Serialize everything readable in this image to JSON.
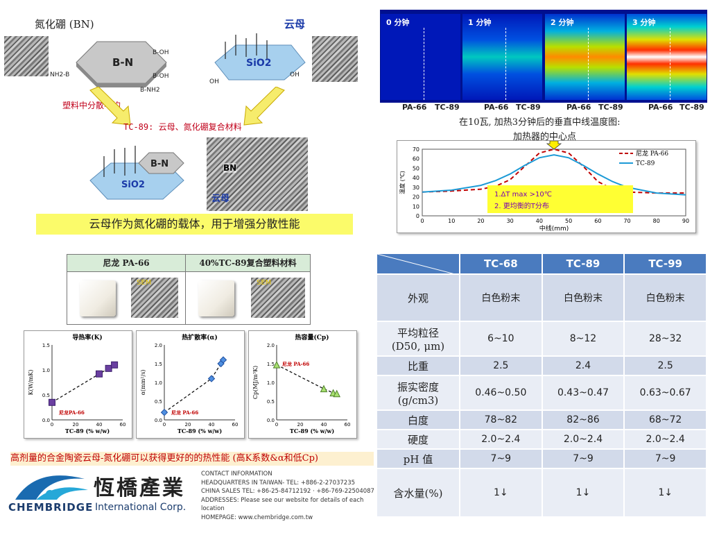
{
  "top_left": {
    "bn_title": "氮化硼 (BN)",
    "mica_title": "云母",
    "bn_label": "B-N",
    "sio2_label": "SiO2",
    "uneven_text": "塑料中分散不均",
    "tc89_caption": "TC-89: 云母、氮化硼复合材料",
    "composite_bn": "B-N",
    "composite_sio2": "SiO2",
    "sem_bn": "BN",
    "sem_mica": "云母",
    "carrier_text": "云母作为氮化硼的载体，用于增强分散性能"
  },
  "heatmap": {
    "panels": [
      "0 分钟",
      "1 分钟",
      "2 分钟",
      "3 分钟"
    ],
    "left_label": "PA-66",
    "right_label": "TC-89",
    "caption": "在10瓦, 加热3分钟后的垂直中线温度图:",
    "center_note": "加热器的中心点"
  },
  "line_chart": {
    "ylabel": "温度 (℃)",
    "xlabel": "中线(mm)",
    "legend": [
      "尼龙 PA-66",
      "TC-89"
    ],
    "note1": "1.ΔT max  >10℃",
    "note2": "2. 更均衡的T分布",
    "chart_data": {
      "type": "line",
      "xlim": [
        0,
        90
      ],
      "ylim": [
        0,
        70
      ],
      "xticks": [
        "0",
        "10",
        "20",
        "30",
        "40",
        "50",
        "60",
        "70",
        "80",
        "90"
      ],
      "yticks": [
        "0",
        "10",
        "20",
        "30",
        "40",
        "50",
        "60",
        "70"
      ],
      "series": [
        {
          "name": "尼龙 PA-66",
          "x": [
            0,
            10,
            20,
            25,
            30,
            35,
            40,
            45,
            50,
            55,
            60,
            65,
            70,
            80,
            90
          ],
          "y": [
            25,
            26,
            28,
            31,
            38,
            52,
            66,
            70,
            66,
            52,
            36,
            28,
            25,
            24,
            24
          ]
        },
        {
          "name": "TC-89",
          "x": [
            0,
            10,
            20,
            25,
            30,
            35,
            40,
            45,
            50,
            55,
            60,
            65,
            70,
            80,
            90
          ],
          "y": [
            25,
            27,
            32,
            37,
            44,
            53,
            61,
            64,
            61,
            53,
            44,
            36,
            30,
            24,
            22
          ]
        }
      ]
    }
  },
  "pa_table": {
    "col1": "尼龙 PA-66",
    "col2": "40%TC-89复合塑料材料",
    "sem": "SEM"
  },
  "small_charts": [
    {
      "title": "导热率(K)",
      "ylabel": "K(W/mK)",
      "xlabel": "TC-89 (% w/w)",
      "annot": "尼龙PA-66",
      "yticks": [
        "0.0",
        "0.5",
        "1.0",
        "1.5"
      ],
      "xticks": [
        "0",
        "20",
        "40",
        "60"
      ],
      "chart_data": {
        "type": "scatter",
        "x": [
          0,
          40,
          48,
          53
        ],
        "y": [
          0.35,
          0.92,
          1.03,
          1.1
        ],
        "xlim": [
          0,
          60
        ],
        "ylim": [
          0,
          1.5
        ]
      }
    },
    {
      "title": "热扩散率(α)",
      "ylabel": "α(mm²/s)",
      "xlabel": "TC-89 (% w/w)",
      "annot": "尼龙 PA-66",
      "yticks": [
        "0.0",
        "0.5",
        "1.0",
        "1.5",
        "2.0"
      ],
      "xticks": [
        "0",
        "20",
        "40",
        "60"
      ],
      "chart_data": {
        "type": "scatter",
        "x": [
          0,
          40,
          48,
          50
        ],
        "y": [
          0.2,
          1.1,
          1.5,
          1.6
        ],
        "xlim": [
          0,
          60
        ],
        "ylim": [
          0,
          2.0
        ]
      }
    },
    {
      "title": "热容量(Cp)",
      "ylabel": "Cp(MJ/m³K)",
      "xlabel": "TC-89 (% w/w)",
      "annot": "尼龙 PA-66",
      "yticks": [
        "0.0",
        "0.5",
        "1.0",
        "1.5",
        "2.0"
      ],
      "xticks": [
        "0",
        "20",
        "40",
        "60"
      ],
      "chart_data": {
        "type": "scatter",
        "x": [
          0,
          40,
          48,
          51
        ],
        "y": [
          1.47,
          0.83,
          0.72,
          0.7
        ],
        "xlim": [
          0,
          60
        ],
        "ylim": [
          0,
          2.0
        ]
      }
    }
  ],
  "bottom_red": "高剂量的合金陶瓷云母-氮化硼可以获得更好的的热性能 (高K系数&α和低Cp)",
  "logo": {
    "brand": "CHEMBRIDGE",
    "sub": "International Corp.",
    "chinese": "恆橋產業"
  },
  "contact": [
    "CONTACT INFORMATION",
    "HEADQUARTERS IN TAIWAN- TEL: +886-2-27037235",
    "CHINA SALES TEL: +86-25-84712192 · +86-769-22504087",
    "ADDRESSES: Please see our website for details of each location",
    "HOMEPAGE: www.chembridge.com.tw"
  ],
  "props_table": {
    "headers": [
      "TC-68",
      "TC-89",
      "TC-99"
    ],
    "rows": [
      {
        "label": "外观",
        "values": [
          "白色粉末",
          "白色粉末",
          "白色粉末"
        ]
      },
      {
        "label": "平均粒径\n(D50, μm)",
        "values": [
          "6~10",
          "8~12",
          "28~32"
        ]
      },
      {
        "label": "比重",
        "values": [
          "2.5",
          "2.4",
          "2.5"
        ]
      },
      {
        "label": "振实密度\n(g/cm3)",
        "values": [
          "0.46~0.50",
          "0.43~0.47",
          "0.63~0.67"
        ]
      },
      {
        "label": "白度",
        "values": [
          "78~82",
          "82~86",
          "68~72"
        ]
      },
      {
        "label": "硬度",
        "values": [
          "2.0~2.4",
          "2.0~2.4",
          "2.0~2.4"
        ]
      },
      {
        "label": "pH 值",
        "values": [
          "7~9",
          "7~9",
          "7~9"
        ]
      },
      {
        "label": "含水量(%)",
        "values": [
          "1↓",
          "1↓",
          "1↓"
        ]
      }
    ]
  }
}
